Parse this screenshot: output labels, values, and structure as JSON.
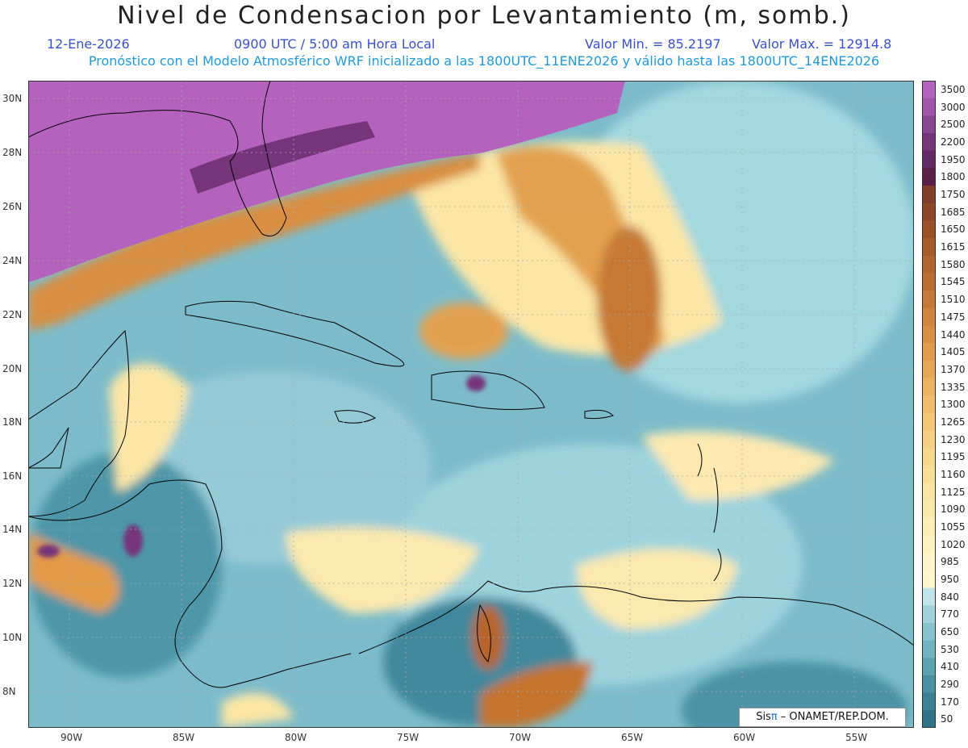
{
  "header": {
    "title": "Nivel de Condensacion por Levantamiento (m, somb.)",
    "date": "12-Ene-2026",
    "time": "0900 UTC / 5:00 am Hora Local",
    "min_label": "Valor Min. = 85.2197",
    "max_label": "Valor Max. = 12914.8",
    "forecast_line": "Pronóstico con el Modelo Atmosférico WRF inicializado a las 1800UTC_11ENE2026 y válido hasta las  1800UTC_14ENE2026"
  },
  "map": {
    "lat_labels": [
      "30N",
      "28N",
      "26N",
      "24N",
      "22N",
      "20N",
      "18N",
      "16N",
      "14N",
      "12N",
      "10N",
      "8N"
    ],
    "lon_labels": [
      "90W",
      "85W",
      "80W",
      "75W",
      "70W",
      "65W",
      "60W",
      "55W"
    ],
    "credit_prefix": "Sis",
    "credit_pi": "π",
    "credit_suffix": " – ONAMET/REP.DOM."
  },
  "legend": {
    "levels": [
      "3500",
      "3000",
      "2500",
      "2200",
      "1950",
      "1800",
      "1750",
      "1685",
      "1650",
      "1615",
      "1580",
      "1545",
      "1510",
      "1475",
      "1440",
      "1405",
      "1370",
      "1335",
      "1300",
      "1265",
      "1230",
      "1195",
      "1160",
      "1125",
      "1090",
      "1055",
      "1020",
      "985",
      "950",
      "840",
      "770",
      "650",
      "530",
      "410",
      "290",
      "170",
      "50"
    ],
    "colors": [
      "#b562bf",
      "#a055aa",
      "#8a4691",
      "#76357a",
      "#642a66",
      "#5a1f48",
      "#823d2a",
      "#8e4726",
      "#9a5126",
      "#a65b28",
      "#b2652c",
      "#bc6f31",
      "#c67936",
      "#d0843c",
      "#d98f43",
      "#e19b4b",
      "#e8a755",
      "#edb25f",
      "#f1bd6a",
      "#f4c675",
      "#f6cf80",
      "#f8d78b",
      "#f9de96",
      "#fae4a1",
      "#fbe9ac",
      "#fcedb6",
      "#fdf1bf",
      "#fdf4c7",
      "#fdf6cf",
      "#bfe4ea",
      "#9fd4de",
      "#86c4d0",
      "#6fb2c1",
      "#5aa1b2",
      "#4891a3",
      "#3a8196",
      "#2e7188"
    ]
  }
}
